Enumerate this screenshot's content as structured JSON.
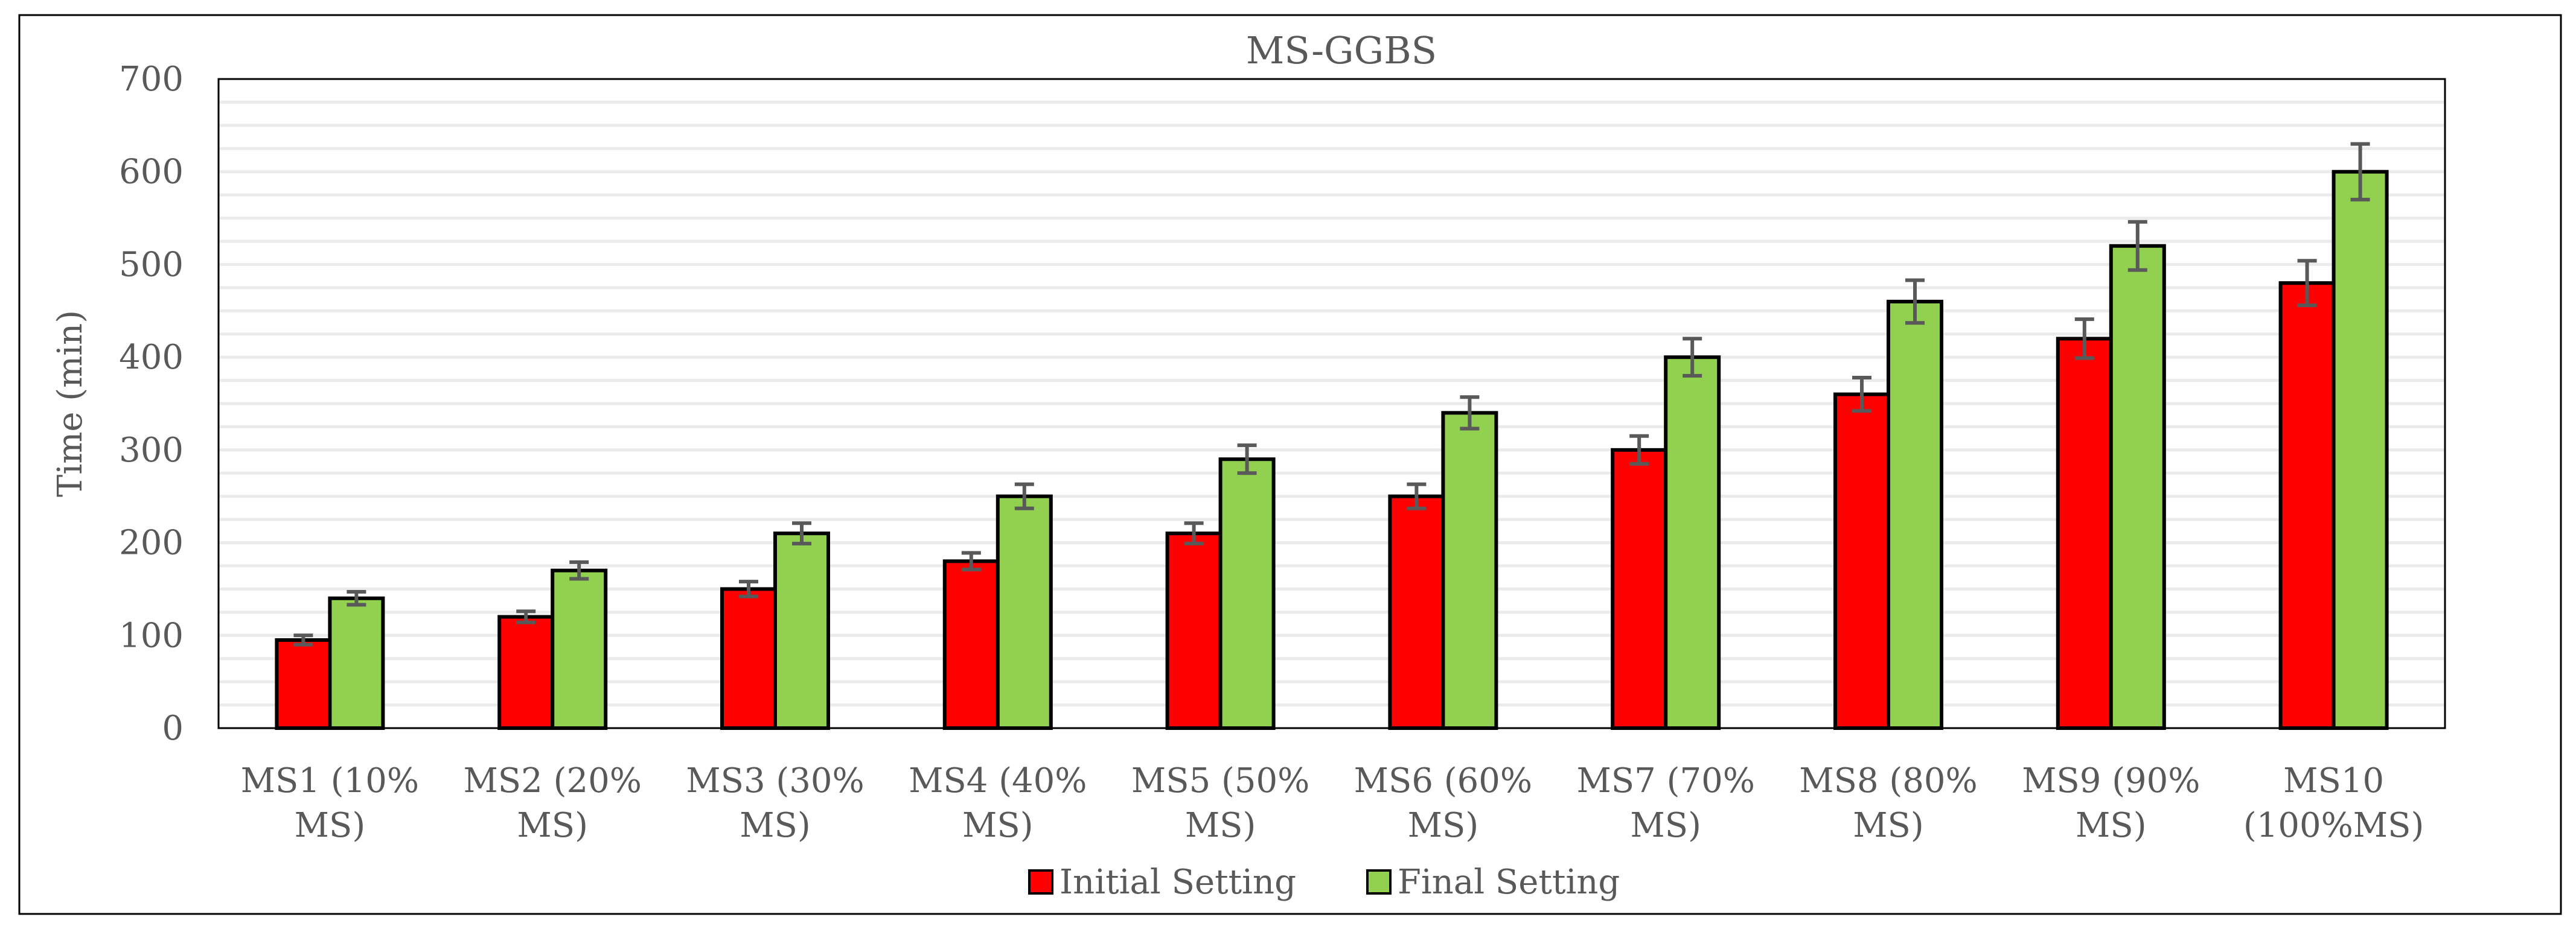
{
  "chart_data": {
    "type": "bar",
    "title": "MS-GGBS",
    "xlabel": "",
    "ylabel": "Time (min)",
    "ylim": [
      0,
      700
    ],
    "yticks": [
      0,
      100,
      200,
      300,
      400,
      500,
      600,
      700
    ],
    "minor_grid": true,
    "legend_position": "bottom",
    "categories": [
      [
        "MS1 (10%",
        "MS)"
      ],
      [
        "MS2 (20%",
        "MS)"
      ],
      [
        "MS3 (30%",
        "MS)"
      ],
      [
        "MS4 (40%",
        "MS)"
      ],
      [
        "MS5 (50%",
        "MS)"
      ],
      [
        "MS6 (60%",
        "MS)"
      ],
      [
        "MS7 (70%",
        "MS)"
      ],
      [
        "MS8 (80%",
        "MS)"
      ],
      [
        "MS9 (90%",
        "MS)"
      ],
      [
        "MS10",
        "(100%MS)"
      ]
    ],
    "series": [
      {
        "name": "Initial Setting",
        "color": "#ff0000",
        "values": [
          95,
          120,
          150,
          180,
          210,
          250,
          300,
          360,
          420,
          480
        ],
        "errors": [
          5,
          6,
          8,
          9,
          11,
          13,
          15,
          18,
          21,
          24
        ]
      },
      {
        "name": "Final Setting",
        "color": "#92d050",
        "values": [
          140,
          170,
          210,
          250,
          290,
          340,
          400,
          460,
          520,
          600
        ],
        "errors": [
          7,
          9,
          11,
          13,
          15,
          17,
          20,
          23,
          26,
          30
        ]
      }
    ]
  }
}
